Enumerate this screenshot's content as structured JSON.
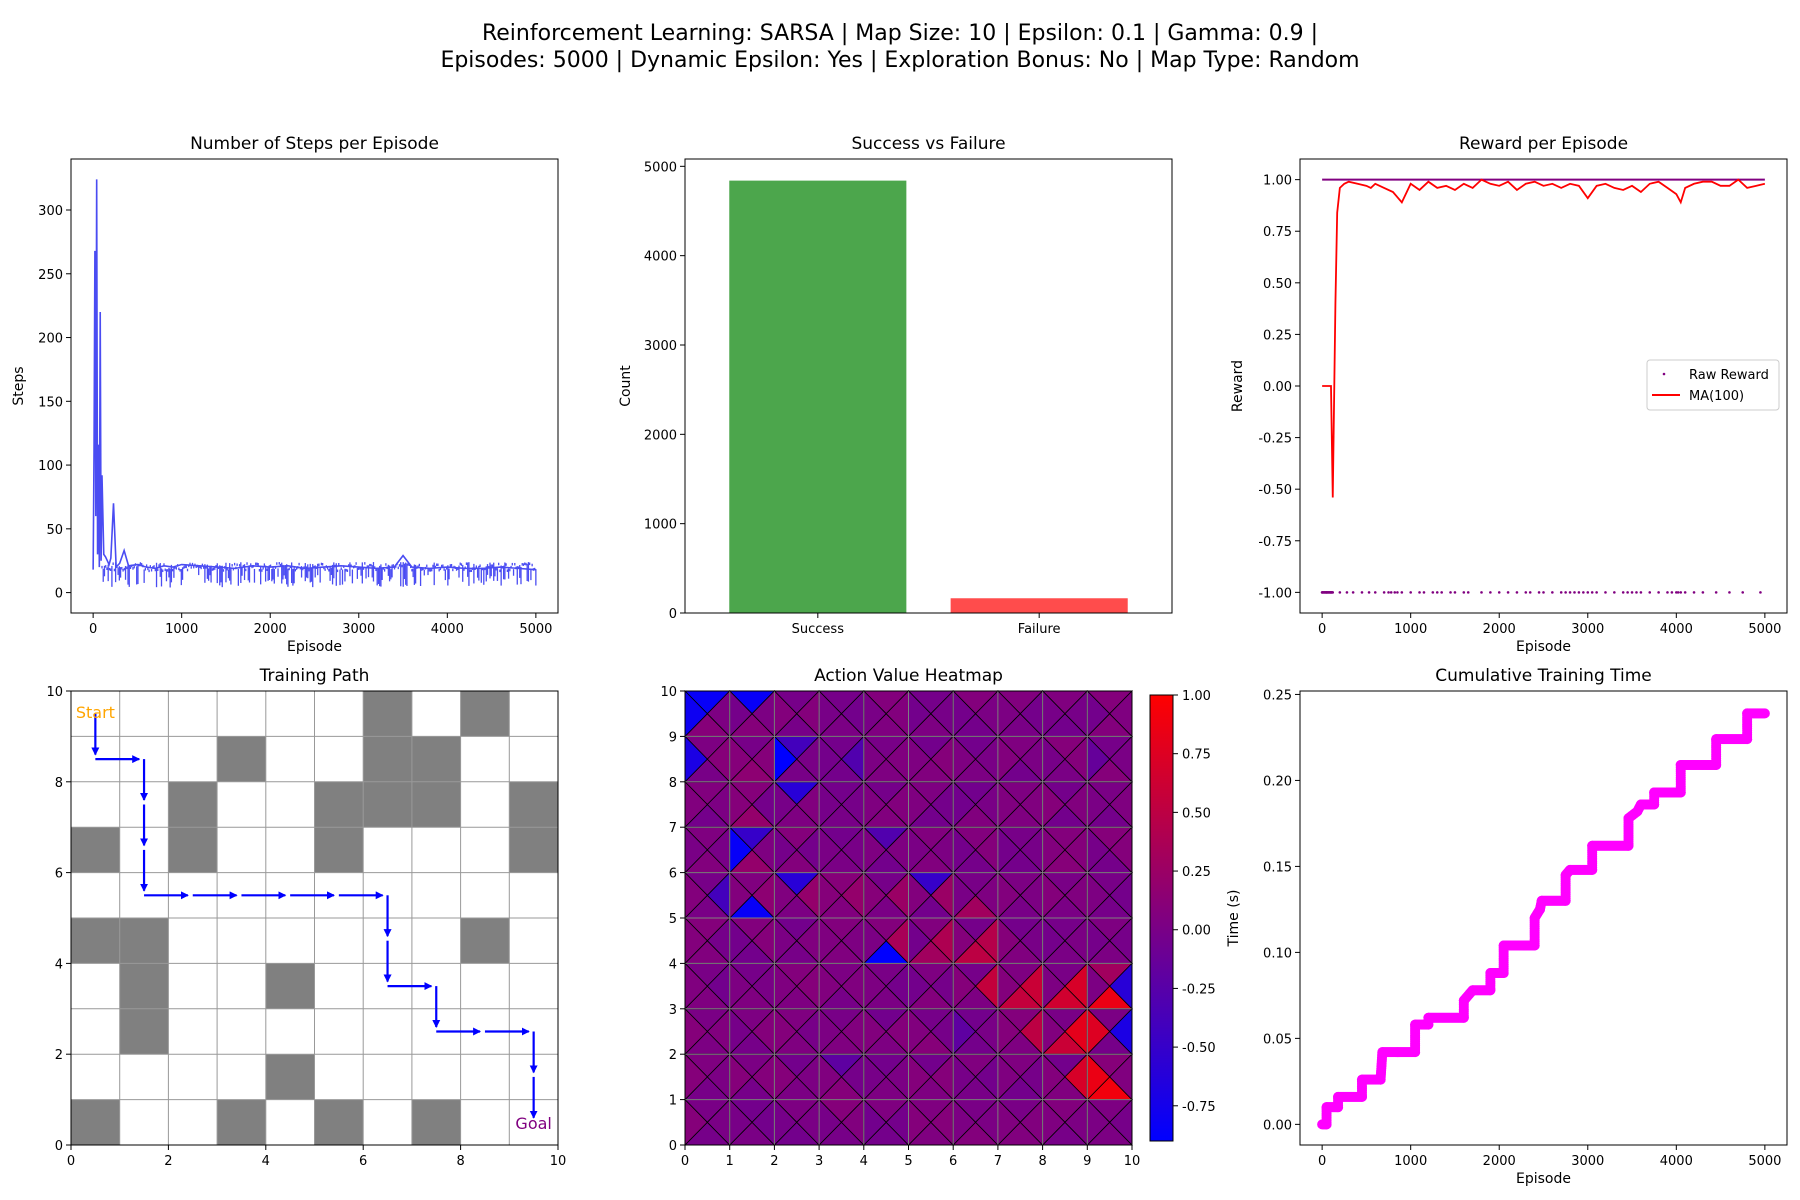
{
  "figure": {
    "title_line1": "Reinforcement Learning: SARSA | Map Size: 10 | Epsilon: 0.1 | Gamma: 0.9 |",
    "title_line2": "Episodes: 5000 | Dynamic Epsilon: Yes | Exploration Bonus: No | Map Type: Random"
  },
  "chart_data": [
    {
      "id": "steps",
      "type": "line",
      "title": "Number of Steps per Episode",
      "xlabel": "Episode",
      "ylabel": "Steps",
      "xlim": [
        -250,
        5250
      ],
      "ylim": [
        -16,
        340
      ],
      "xticks": [
        0,
        1000,
        2000,
        3000,
        4000,
        5000
      ],
      "yticks": [
        0,
        50,
        100,
        150,
        200,
        250,
        300
      ],
      "color": "#4a4cf2",
      "series": [
        {
          "x": [
            0,
            10,
            20,
            30,
            40,
            50,
            60,
            70,
            80,
            90,
            100,
            120,
            140,
            160,
            180,
            200,
            230,
            260,
            300,
            350,
            400,
            500,
            600,
            700,
            800,
            900,
            1000,
            1200,
            1400,
            1600,
            1800,
            2000,
            2200,
            2400,
            2600,
            2800,
            3000,
            3200,
            3400,
            3500,
            3600,
            3800,
            4000,
            4200,
            4400,
            4600,
            4800,
            5000
          ],
          "y": [
            18,
            110,
            268,
            60,
            324,
            30,
            116,
            20,
            220,
            25,
            92,
            30,
            28,
            25,
            22,
            27,
            70,
            20,
            23,
            33,
            21,
            22,
            20,
            19,
            21,
            20,
            22,
            21,
            20,
            19,
            21,
            20,
            21,
            19,
            20,
            21,
            20,
            19,
            20,
            29,
            20,
            19,
            20,
            19,
            19,
            20,
            19,
            18
          ]
        }
      ]
    },
    {
      "id": "success",
      "type": "bar",
      "title": "Success vs Failure",
      "ylabel": "Count",
      "categories": [
        "Success",
        "Failure"
      ],
      "values": [
        4840,
        165
      ],
      "colors": [
        "#4ca64c",
        "#ff4c4c"
      ],
      "ylim": [
        0,
        5082
      ],
      "yticks": [
        0,
        1000,
        2000,
        3000,
        4000,
        5000
      ]
    },
    {
      "id": "reward",
      "type": "line",
      "title": "Reward per Episode",
      "xlabel": "Episode",
      "ylabel": "Reward",
      "xlim": [
        -250,
        5250
      ],
      "ylim": [
        -1.1,
        1.1
      ],
      "xticks": [
        0,
        1000,
        2000,
        3000,
        4000,
        5000
      ],
      "yticks": [
        -1.0,
        -0.75,
        -0.5,
        -0.25,
        0.0,
        0.25,
        0.5,
        0.75,
        1.0
      ],
      "legend_position": "center-right",
      "series": [
        {
          "name": "Raw Reward",
          "style": "points",
          "color": "#800080",
          "x_fail": [
            0,
            50,
            100,
            200,
            280,
            350,
            450,
            530,
            600,
            700,
            750,
            780,
            820,
            850,
            900,
            1000,
            1100,
            1150,
            1250,
            1300,
            1350,
            1450,
            1500,
            1600,
            1650,
            1800,
            1900,
            2000,
            2100,
            2200,
            2300,
            2350,
            2450,
            2500,
            2600,
            2700,
            2750,
            2800,
            2850,
            2900,
            2950,
            3000,
            3050,
            3100,
            3200,
            3300,
            3400,
            3450,
            3500,
            3550,
            3600,
            3700,
            3800,
            3900,
            3950,
            4000,
            4020,
            4050,
            4100,
            4200,
            4300,
            4450,
            4600,
            4750,
            4950
          ]
        },
        {
          "name": "MA(100)",
          "style": "line",
          "color": "#ff0000",
          "x": [
            0,
            100,
            120,
            150,
            170,
            200,
            250,
            300,
            400,
            500,
            550,
            600,
            700,
            800,
            900,
            1000,
            1100,
            1200,
            1300,
            1400,
            1500,
            1600,
            1700,
            1800,
            1900,
            2000,
            2100,
            2200,
            2300,
            2400,
            2500,
            2600,
            2700,
            2800,
            2900,
            3000,
            3100,
            3200,
            3300,
            3400,
            3500,
            3600,
            3700,
            3800,
            3900,
            4000,
            4050,
            4100,
            4200,
            4300,
            4400,
            4500,
            4600,
            4700,
            4800,
            4900,
            5000
          ],
          "y": [
            0.0,
            0.0,
            -0.54,
            0.4,
            0.84,
            0.96,
            0.98,
            0.99,
            0.98,
            0.97,
            0.96,
            0.98,
            0.96,
            0.94,
            0.89,
            0.98,
            0.95,
            0.99,
            0.96,
            0.97,
            0.95,
            0.98,
            0.96,
            1.0,
            0.98,
            0.97,
            0.99,
            0.95,
            0.98,
            0.99,
            0.97,
            0.98,
            0.96,
            0.98,
            0.97,
            0.91,
            0.97,
            0.98,
            0.96,
            0.95,
            0.97,
            0.94,
            0.98,
            0.99,
            0.96,
            0.93,
            0.89,
            0.96,
            0.98,
            0.99,
            0.99,
            0.97,
            0.97,
            1.0,
            0.96,
            0.97,
            0.98
          ]
        }
      ]
    },
    {
      "id": "path",
      "type": "heatmap",
      "title": "Training Path",
      "xlim": [
        0,
        10
      ],
      "ylim": [
        0,
        10
      ],
      "xticks": [
        0,
        2,
        4,
        6,
        8,
        10
      ],
      "yticks": [
        0,
        2,
        4,
        6,
        8,
        10
      ],
      "obstacles": [
        [
          6,
          9
        ],
        [
          8,
          9
        ],
        [
          3,
          8
        ],
        [
          6,
          8
        ],
        [
          7,
          8
        ],
        [
          2,
          7
        ],
        [
          5,
          7
        ],
        [
          6,
          7
        ],
        [
          7,
          7
        ],
        [
          9,
          7
        ],
        [
          0,
          6
        ],
        [
          2,
          6
        ],
        [
          5,
          6
        ],
        [
          9,
          6
        ],
        [
          0,
          4
        ],
        [
          1,
          4
        ],
        [
          8,
          4
        ],
        [
          1,
          3
        ],
        [
          4,
          3
        ],
        [
          1,
          2
        ],
        [
          4,
          1
        ],
        [
          0,
          0
        ],
        [
          3,
          0
        ],
        [
          5,
          0
        ],
        [
          7,
          0
        ]
      ],
      "path_points": [
        [
          0.5,
          9.5
        ],
        [
          0.5,
          8.5
        ],
        [
          1.5,
          8.5
        ],
        [
          1.5,
          7.5
        ],
        [
          1.5,
          6.5
        ],
        [
          1.5,
          5.5
        ],
        [
          2.5,
          5.5
        ],
        [
          3.5,
          5.5
        ],
        [
          4.5,
          5.5
        ],
        [
          5.5,
          5.5
        ],
        [
          6.5,
          5.5
        ],
        [
          6.5,
          4.5
        ],
        [
          6.5,
          3.5
        ],
        [
          7.5,
          3.5
        ],
        [
          7.5,
          2.5
        ],
        [
          8.5,
          2.5
        ],
        [
          9.5,
          2.5
        ],
        [
          9.5,
          1.5
        ],
        [
          9.5,
          0.5
        ]
      ],
      "start_label": "Start",
      "goal_label": "Goal",
      "colors": {
        "obstacle": "#808080",
        "path": "#0000ff",
        "start": "#ffa500",
        "goal": "#800080"
      }
    },
    {
      "id": "heatmap",
      "type": "heatmap",
      "title": "Action Value Heatmap",
      "xlim": [
        0,
        10
      ],
      "ylim": [
        0,
        10
      ],
      "xticks": [
        0,
        1,
        2,
        3,
        4,
        5,
        6,
        7,
        8,
        9,
        10
      ],
      "yticks": [
        0,
        1,
        2,
        3,
        4,
        5,
        6,
        7,
        8,
        9,
        10
      ],
      "colorbar": {
        "min": -0.9,
        "max": 1.0,
        "ticks": [
          -0.75,
          -0.5,
          -0.25,
          0.0,
          0.25,
          0.5,
          0.75,
          1.0
        ]
      },
      "hot_triangles": [
        [
          9,
          1,
          "w",
          0.85
        ],
        [
          9,
          1,
          "s",
          0.9
        ],
        [
          8,
          1,
          "e",
          0.7
        ],
        [
          9,
          2,
          "w",
          0.75
        ],
        [
          8,
          2,
          "e",
          0.8
        ],
        [
          8,
          2,
          "s",
          0.6
        ],
        [
          7,
          2,
          "e",
          0.5
        ],
        [
          9,
          3,
          "s",
          0.85
        ],
        [
          9,
          3,
          "n",
          0.3
        ],
        [
          8,
          3,
          "e",
          0.7
        ],
        [
          8,
          3,
          "s",
          0.65
        ],
        [
          7,
          3,
          "e",
          0.6
        ],
        [
          7,
          3,
          "s",
          0.55
        ],
        [
          6,
          3,
          "e",
          0.55
        ],
        [
          6,
          4,
          "s",
          0.5
        ],
        [
          6,
          4,
          "e",
          0.45
        ],
        [
          5,
          4,
          "e",
          0.4
        ],
        [
          5,
          4,
          "s",
          0.3
        ],
        [
          4,
          4,
          "e",
          0.35
        ],
        [
          6,
          5,
          "s",
          0.3
        ],
        [
          5,
          5,
          "e",
          0.25
        ],
        [
          4,
          5,
          "e",
          0.25
        ],
        [
          3,
          5,
          "e",
          0.2
        ],
        [
          2,
          5,
          "e",
          0.2
        ],
        [
          1,
          5,
          "e",
          0.15
        ],
        [
          1,
          6,
          "s",
          0.2
        ],
        [
          1,
          7,
          "s",
          0.2
        ],
        [
          1,
          8,
          "s",
          0.15
        ],
        [
          0,
          9,
          "s",
          0.1
        ],
        [
          0,
          8,
          "e",
          0.1
        ]
      ],
      "cold_triangles": [
        [
          0,
          9,
          "n",
          -0.85
        ],
        [
          0,
          9,
          "w",
          -0.8
        ],
        [
          1,
          9,
          "n",
          -0.85
        ],
        [
          0,
          8,
          "w",
          -0.7
        ],
        [
          2,
          8,
          "w",
          -0.9
        ],
        [
          2,
          7,
          "n",
          -0.6
        ],
        [
          1,
          6,
          "w",
          -0.85
        ],
        [
          1,
          6,
          "n",
          -0.5
        ],
        [
          1,
          5,
          "s",
          -0.85
        ],
        [
          0,
          5,
          "e",
          -0.4
        ],
        [
          2,
          5,
          "n",
          -0.6
        ],
        [
          4,
          4,
          "s",
          -0.9
        ],
        [
          5,
          5,
          "n",
          -0.5
        ],
        [
          9,
          3,
          "e",
          -0.6
        ],
        [
          9,
          2,
          "e",
          -0.7
        ],
        [
          2,
          8,
          "n",
          -0.4
        ],
        [
          3,
          8,
          "e",
          -0.3
        ],
        [
          4,
          6,
          "n",
          -0.3
        ],
        [
          6,
          2,
          "w",
          -0.2
        ],
        [
          3,
          1,
          "n",
          -0.2
        ],
        [
          9,
          8,
          "w",
          -0.15
        ]
      ]
    },
    {
      "id": "time",
      "type": "scatter",
      "title": "Cumulative Training Time",
      "xlabel": "Episode",
      "ylabel": "Time (s)",
      "xlim": [
        -250,
        5250
      ],
      "ylim": [
        -0.012,
        0.252
      ],
      "xticks": [
        0,
        1000,
        2000,
        3000,
        4000,
        5000
      ],
      "yticks": [
        0.0,
        0.05,
        0.1,
        0.15,
        0.2,
        0.25
      ],
      "color": "#ff00ff",
      "steps": [
        [
          0,
          0.0
        ],
        [
          50,
          0.0
        ],
        [
          50,
          0.01
        ],
        [
          180,
          0.01
        ],
        [
          180,
          0.016
        ],
        [
          450,
          0.016
        ],
        [
          450,
          0.026
        ],
        [
          660,
          0.026
        ],
        [
          660,
          0.026
        ],
        [
          680,
          0.042
        ],
        [
          1050,
          0.042
        ],
        [
          1050,
          0.058
        ],
        [
          1200,
          0.058
        ],
        [
          1200,
          0.062
        ],
        [
          1600,
          0.062
        ],
        [
          1600,
          0.072
        ],
        [
          1700,
          0.078
        ],
        [
          1900,
          0.078
        ],
        [
          1900,
          0.088
        ],
        [
          2050,
          0.088
        ],
        [
          2050,
          0.104
        ],
        [
          2400,
          0.104
        ],
        [
          2400,
          0.12
        ],
        [
          2460,
          0.125
        ],
        [
          2480,
          0.13
        ],
        [
          2750,
          0.13
        ],
        [
          2750,
          0.145
        ],
        [
          2800,
          0.148
        ],
        [
          3050,
          0.148
        ],
        [
          3050,
          0.162
        ],
        [
          3460,
          0.162
        ],
        [
          3460,
          0.178
        ],
        [
          3560,
          0.182
        ],
        [
          3600,
          0.186
        ],
        [
          3750,
          0.186
        ],
        [
          3750,
          0.193
        ],
        [
          4050,
          0.193
        ],
        [
          4050,
          0.209
        ],
        [
          4450,
          0.209
        ],
        [
          4450,
          0.224
        ],
        [
          4800,
          0.224
        ],
        [
          4800,
          0.239
        ],
        [
          5000,
          0.239
        ]
      ]
    }
  ]
}
